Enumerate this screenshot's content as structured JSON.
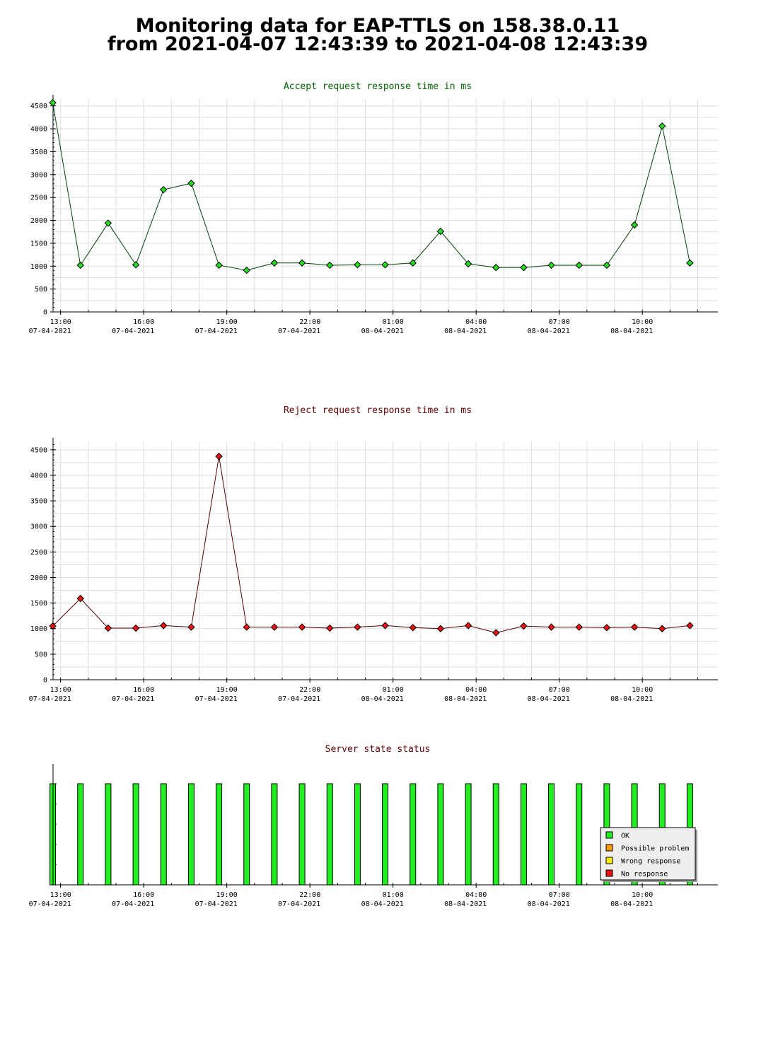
{
  "page": {
    "title_line1": "Monitoring data for EAP-TTLS on 158.38.0.11",
    "title_line2": "from 2021-04-07 12:43:39 to 2021-04-08 12:43:39"
  },
  "colors": {
    "accept_title": "#006400",
    "reject_title": "#660000",
    "status_title": "#660000",
    "accept_marker": "#22dd22",
    "accept_line": "#004400",
    "reject_marker": "#ee1111",
    "reject_line": "#550000",
    "ok": "#22ee22",
    "possible_problem": "#ff9900",
    "wrong_response": "#ffee00",
    "no_response": "#ee1111",
    "grid": "#dddddd"
  },
  "chart_data": [
    {
      "type": "line",
      "title": "Accept request response time in ms",
      "xlabel": "",
      "ylabel": "",
      "x_ticks": [
        {
          "time": "13:00",
          "date": "07-04-2021"
        },
        {
          "time": "16:00",
          "date": "07-04-2021"
        },
        {
          "time": "19:00",
          "date": "07-04-2021"
        },
        {
          "time": "22:00",
          "date": "07-04-2021"
        },
        {
          "time": "01:00",
          "date": "08-04-2021"
        },
        {
          "time": "04:00",
          "date": "08-04-2021"
        },
        {
          "time": "07:00",
          "date": "08-04-2021"
        },
        {
          "time": "10:00",
          "date": "08-04-2021"
        }
      ],
      "y_ticks": [
        0,
        500,
        1000,
        1500,
        2000,
        2500,
        3000,
        3500,
        4000,
        4500
      ],
      "ylim": [
        0,
        4650
      ],
      "grid": true,
      "x": [
        "2021-04-07 12:43",
        "2021-04-07 13:43",
        "2021-04-07 14:43",
        "2021-04-07 15:43",
        "2021-04-07 16:43",
        "2021-04-07 17:43",
        "2021-04-07 18:43",
        "2021-04-07 19:43",
        "2021-04-07 20:43",
        "2021-04-07 21:43",
        "2021-04-07 22:43",
        "2021-04-07 23:43",
        "2021-04-08 00:43",
        "2021-04-08 01:43",
        "2021-04-08 02:43",
        "2021-04-08 03:43",
        "2021-04-08 04:43",
        "2021-04-08 05:43",
        "2021-04-08 06:43",
        "2021-04-08 07:43",
        "2021-04-08 08:43",
        "2021-04-08 09:43",
        "2021-04-08 10:43",
        "2021-04-08 11:43"
      ],
      "values": [
        4570,
        1020,
        1940,
        1030,
        2670,
        2810,
        1020,
        910,
        1070,
        1070,
        1020,
        1030,
        1030,
        1070,
        1760,
        1050,
        970,
        970,
        1020,
        1020,
        1020,
        1900,
        4060,
        1070
      ]
    },
    {
      "type": "line",
      "title": "Reject request response time in ms",
      "xlabel": "",
      "ylabel": "",
      "x_ticks": [
        {
          "time": "13:00",
          "date": "07-04-2021"
        },
        {
          "time": "16:00",
          "date": "07-04-2021"
        },
        {
          "time": "19:00",
          "date": "07-04-2021"
        },
        {
          "time": "22:00",
          "date": "07-04-2021"
        },
        {
          "time": "01:00",
          "date": "08-04-2021"
        },
        {
          "time": "04:00",
          "date": "08-04-2021"
        },
        {
          "time": "07:00",
          "date": "08-04-2021"
        },
        {
          "time": "10:00",
          "date": "08-04-2021"
        }
      ],
      "y_ticks": [
        0,
        500,
        1000,
        1500,
        2000,
        2500,
        3000,
        3500,
        4000,
        4500
      ],
      "ylim": [
        0,
        4650
      ],
      "grid": true,
      "x": [
        "2021-04-07 12:43",
        "2021-04-07 13:43",
        "2021-04-07 14:43",
        "2021-04-07 15:43",
        "2021-04-07 16:43",
        "2021-04-07 17:43",
        "2021-04-07 18:43",
        "2021-04-07 19:43",
        "2021-04-07 20:43",
        "2021-04-07 21:43",
        "2021-04-07 22:43",
        "2021-04-07 23:43",
        "2021-04-08 00:43",
        "2021-04-08 01:43",
        "2021-04-08 02:43",
        "2021-04-08 03:43",
        "2021-04-08 04:43",
        "2021-04-08 05:43",
        "2021-04-08 06:43",
        "2021-04-08 07:43",
        "2021-04-08 08:43",
        "2021-04-08 09:43",
        "2021-04-08 10:43",
        "2021-04-08 11:43"
      ],
      "values": [
        1050,
        1590,
        1010,
        1010,
        1060,
        1030,
        4370,
        1030,
        1030,
        1030,
        1010,
        1030,
        1060,
        1020,
        1000,
        1060,
        920,
        1050,
        1030,
        1030,
        1020,
        1030,
        1000,
        1060
      ]
    },
    {
      "type": "bar",
      "title": "Server state status",
      "xlabel": "",
      "ylabel": "",
      "x_ticks": [
        {
          "time": "13:00",
          "date": "07-04-2021"
        },
        {
          "time": "16:00",
          "date": "07-04-2021"
        },
        {
          "time": "19:00",
          "date": "07-04-2021"
        },
        {
          "time": "22:00",
          "date": "07-04-2021"
        },
        {
          "time": "01:00",
          "date": "08-04-2021"
        },
        {
          "time": "04:00",
          "date": "08-04-2021"
        },
        {
          "time": "07:00",
          "date": "08-04-2021"
        },
        {
          "time": "10:00",
          "date": "08-04-2021"
        }
      ],
      "x": [
        "2021-04-07 12:43",
        "2021-04-07 13:43",
        "2021-04-07 14:43",
        "2021-04-07 15:43",
        "2021-04-07 16:43",
        "2021-04-07 17:43",
        "2021-04-07 18:43",
        "2021-04-07 19:43",
        "2021-04-07 20:43",
        "2021-04-07 21:43",
        "2021-04-07 22:43",
        "2021-04-07 23:43",
        "2021-04-08 00:43",
        "2021-04-08 01:43",
        "2021-04-08 02:43",
        "2021-04-08 03:43",
        "2021-04-08 04:43",
        "2021-04-08 05:43",
        "2021-04-08 06:43",
        "2021-04-08 07:43",
        "2021-04-08 08:43",
        "2021-04-08 09:43",
        "2021-04-08 10:43",
        "2021-04-08 11:43"
      ],
      "states": [
        "OK",
        "OK",
        "OK",
        "OK",
        "OK",
        "OK",
        "OK",
        "OK",
        "OK",
        "OK",
        "OK",
        "OK",
        "OK",
        "OK",
        "OK",
        "OK",
        "OK",
        "OK",
        "OK",
        "OK",
        "OK",
        "OK",
        "OK",
        "OK"
      ],
      "legend_position": "bottom-right",
      "legend": [
        {
          "label": "OK",
          "color": "#22ee22"
        },
        {
          "label": "Possible problem",
          "color": "#ff9900"
        },
        {
          "label": "Wrong response",
          "color": "#ffee00"
        },
        {
          "label": "No response",
          "color": "#ee1111"
        }
      ]
    }
  ]
}
